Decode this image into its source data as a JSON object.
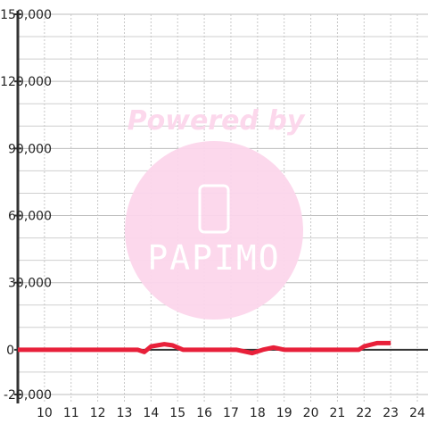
{
  "chart_data": {
    "type": "line",
    "watermark": {
      "line1": "Powered by",
      "line2": "PAPIMO"
    },
    "x": [
      9,
      13.5,
      13.75,
      14,
      14.5,
      14.8,
      15.2,
      17.2,
      17.8,
      18.2,
      18.6,
      19,
      21.8,
      22,
      22.5,
      23
    ],
    "series": [
      {
        "color": "#e8203a",
        "values": [
          0,
          0,
          -1000,
          1500,
          2500,
          2000,
          0,
          0,
          -1500,
          0,
          1000,
          0,
          0,
          1500,
          3000,
          3000
        ]
      }
    ],
    "xlim": [
      9,
      24.4
    ],
    "xticks": [
      10,
      11,
      12,
      13,
      14,
      15,
      16,
      17,
      18,
      19,
      20,
      21,
      22,
      23,
      24
    ],
    "ylim": [
      -24000,
      150000
    ],
    "yticks": [
      {
        "value": 150000,
        "label": "150,000"
      },
      {
        "value": 120000,
        "label": "120,000"
      },
      {
        "value": 90000,
        "label": "90,000"
      },
      {
        "value": 60000,
        "label": "60,000"
      },
      {
        "value": 30000,
        "label": "30,000"
      },
      0,
      {
        "value": -20000,
        "label": "-20,000"
      }
    ],
    "minor_yticks": [
      140000,
      130000,
      110000,
      100000,
      80000,
      70000,
      50000,
      40000,
      20000,
      10000,
      -10000
    ],
    "grid": true
  }
}
